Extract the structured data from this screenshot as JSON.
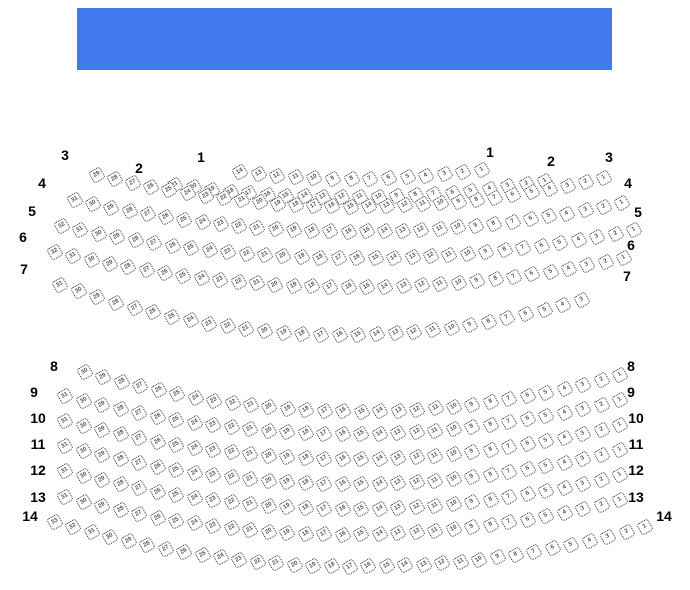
{
  "stage_color": "#4479ee",
  "rows": [
    {
      "label": "1",
      "first": 14,
      "last": 1
    },
    {
      "label": "2",
      "first": 21,
      "last": 1
    },
    {
      "label": "3",
      "first": 29,
      "last": 1
    },
    {
      "label": "4",
      "first": 31,
      "last": 1
    },
    {
      "label": "5",
      "first": 32,
      "last": 1
    },
    {
      "label": "6",
      "first": 32,
      "last": 1
    },
    {
      "label": "7",
      "first": 31,
      "last": 3
    },
    {
      "label": "8",
      "first": 30,
      "last": 1
    },
    {
      "label": "9",
      "first": 31,
      "last": 1
    },
    {
      "label": "10",
      "first": 31,
      "last": 1
    },
    {
      "label": "11",
      "first": 31,
      "last": 1
    },
    {
      "label": "12",
      "first": 31,
      "last": 1
    },
    {
      "label": "13",
      "first": 31,
      "last": 1
    },
    {
      "label": "14",
      "first": 33,
      "last": 1
    }
  ]
}
